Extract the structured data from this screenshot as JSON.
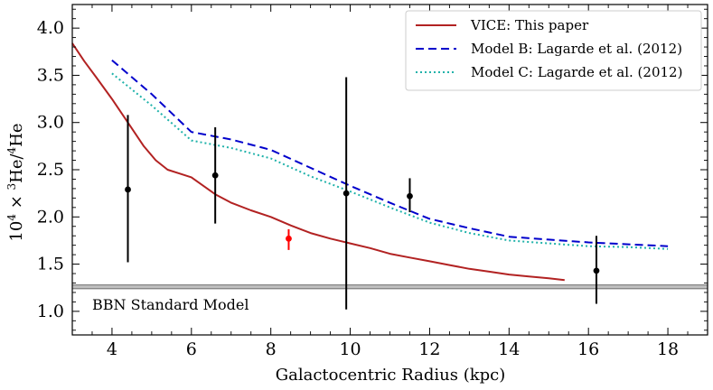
{
  "chart_data": {
    "type": "line",
    "xlabel": "Galactocentric Radius (kpc)",
    "ylabel_prefix": "10",
    "ylabel_prefix_sup": "4",
    "ylabel_mid": " × ",
    "ylabel_sup1": "3",
    "ylabel_he1": "He/",
    "ylabel_sup2": "4",
    "ylabel_he2": "He",
    "xlim": [
      3,
      19
    ],
    "ylim": [
      0.75,
      4.25
    ],
    "xticks": [
      4,
      6,
      8,
      10,
      12,
      14,
      16,
      18
    ],
    "xtick_labels": [
      "4",
      "6",
      "8",
      "10",
      "12",
      "14",
      "16",
      "18"
    ],
    "yticks": [
      1.0,
      1.5,
      2.0,
      2.5,
      3.0,
      3.5,
      4.0
    ],
    "ytick_labels": [
      "1.0",
      "1.5",
      "2.0",
      "2.5",
      "3.0",
      "3.5",
      "4.0"
    ],
    "legend_position": "top-right",
    "series": [
      {
        "name": "VICE: This paper",
        "style": "solid",
        "color": "#b22222",
        "x": [
          3.0,
          3.3,
          3.6,
          4.0,
          4.4,
          4.8,
          5.1,
          5.4,
          5.7,
          6.0,
          6.3,
          6.6,
          7.0,
          7.5,
          8.0,
          8.5,
          9.0,
          9.5,
          10.0,
          10.5,
          11.0,
          11.5,
          12.0,
          12.5,
          13.0,
          13.5,
          14.0,
          14.5,
          15.0,
          15.4
        ],
        "y": [
          3.84,
          3.65,
          3.48,
          3.25,
          3.0,
          2.75,
          2.6,
          2.5,
          2.46,
          2.42,
          2.33,
          2.24,
          2.15,
          2.07,
          2.0,
          1.91,
          1.83,
          1.77,
          1.72,
          1.67,
          1.61,
          1.57,
          1.53,
          1.49,
          1.45,
          1.42,
          1.39,
          1.37,
          1.35,
          1.33
        ]
      },
      {
        "name": "Model B: Lagarde et al. (2012)",
        "style": "dashed",
        "color": "#0000cc",
        "x": [
          4.0,
          5.0,
          6.0,
          7.0,
          8.0,
          9.0,
          10.0,
          11.0,
          12.0,
          13.0,
          14.0,
          15.0,
          16.0,
          17.0,
          18.0
        ],
        "y": [
          3.66,
          3.3,
          2.9,
          2.82,
          2.71,
          2.52,
          2.33,
          2.15,
          1.98,
          1.88,
          1.79,
          1.76,
          1.73,
          1.71,
          1.69
        ]
      },
      {
        "name": "Model C: Lagarde et al. (2012)",
        "style": "dotted",
        "color": "#20b2aa",
        "x": [
          4.0,
          5.0,
          6.0,
          7.0,
          8.0,
          9.0,
          10.0,
          11.0,
          12.0,
          13.0,
          14.0,
          15.0,
          16.0,
          17.0,
          18.0
        ],
        "y": [
          3.52,
          3.18,
          2.81,
          2.73,
          2.62,
          2.43,
          2.27,
          2.1,
          1.94,
          1.83,
          1.75,
          1.72,
          1.69,
          1.68,
          1.66
        ]
      }
    ],
    "data_points": [
      {
        "x": 4.4,
        "y": 2.29,
        "ylow": 1.52,
        "yhigh": 3.08,
        "color": "#000000"
      },
      {
        "x": 6.6,
        "y": 2.44,
        "ylow": 1.93,
        "yhigh": 2.95,
        "color": "#000000"
      },
      {
        "x": 8.45,
        "y": 1.77,
        "ylow": 1.65,
        "yhigh": 1.87,
        "color": "#ff0000"
      },
      {
        "x": 9.9,
        "y": 2.25,
        "ylow": 1.02,
        "yhigh": 3.48,
        "color": "#000000"
      },
      {
        "x": 11.5,
        "y": 2.22,
        "ylow": 2.05,
        "yhigh": 2.41,
        "color": "#000000"
      },
      {
        "x": 16.2,
        "y": 1.43,
        "ylow": 1.08,
        "yhigh": 1.8,
        "color": "#000000"
      }
    ],
    "bbn_band": {
      "label": "BBN Standard Model",
      "ylow": 1.24,
      "yhigh": 1.28,
      "center": 1.26,
      "color": "#808080"
    }
  }
}
